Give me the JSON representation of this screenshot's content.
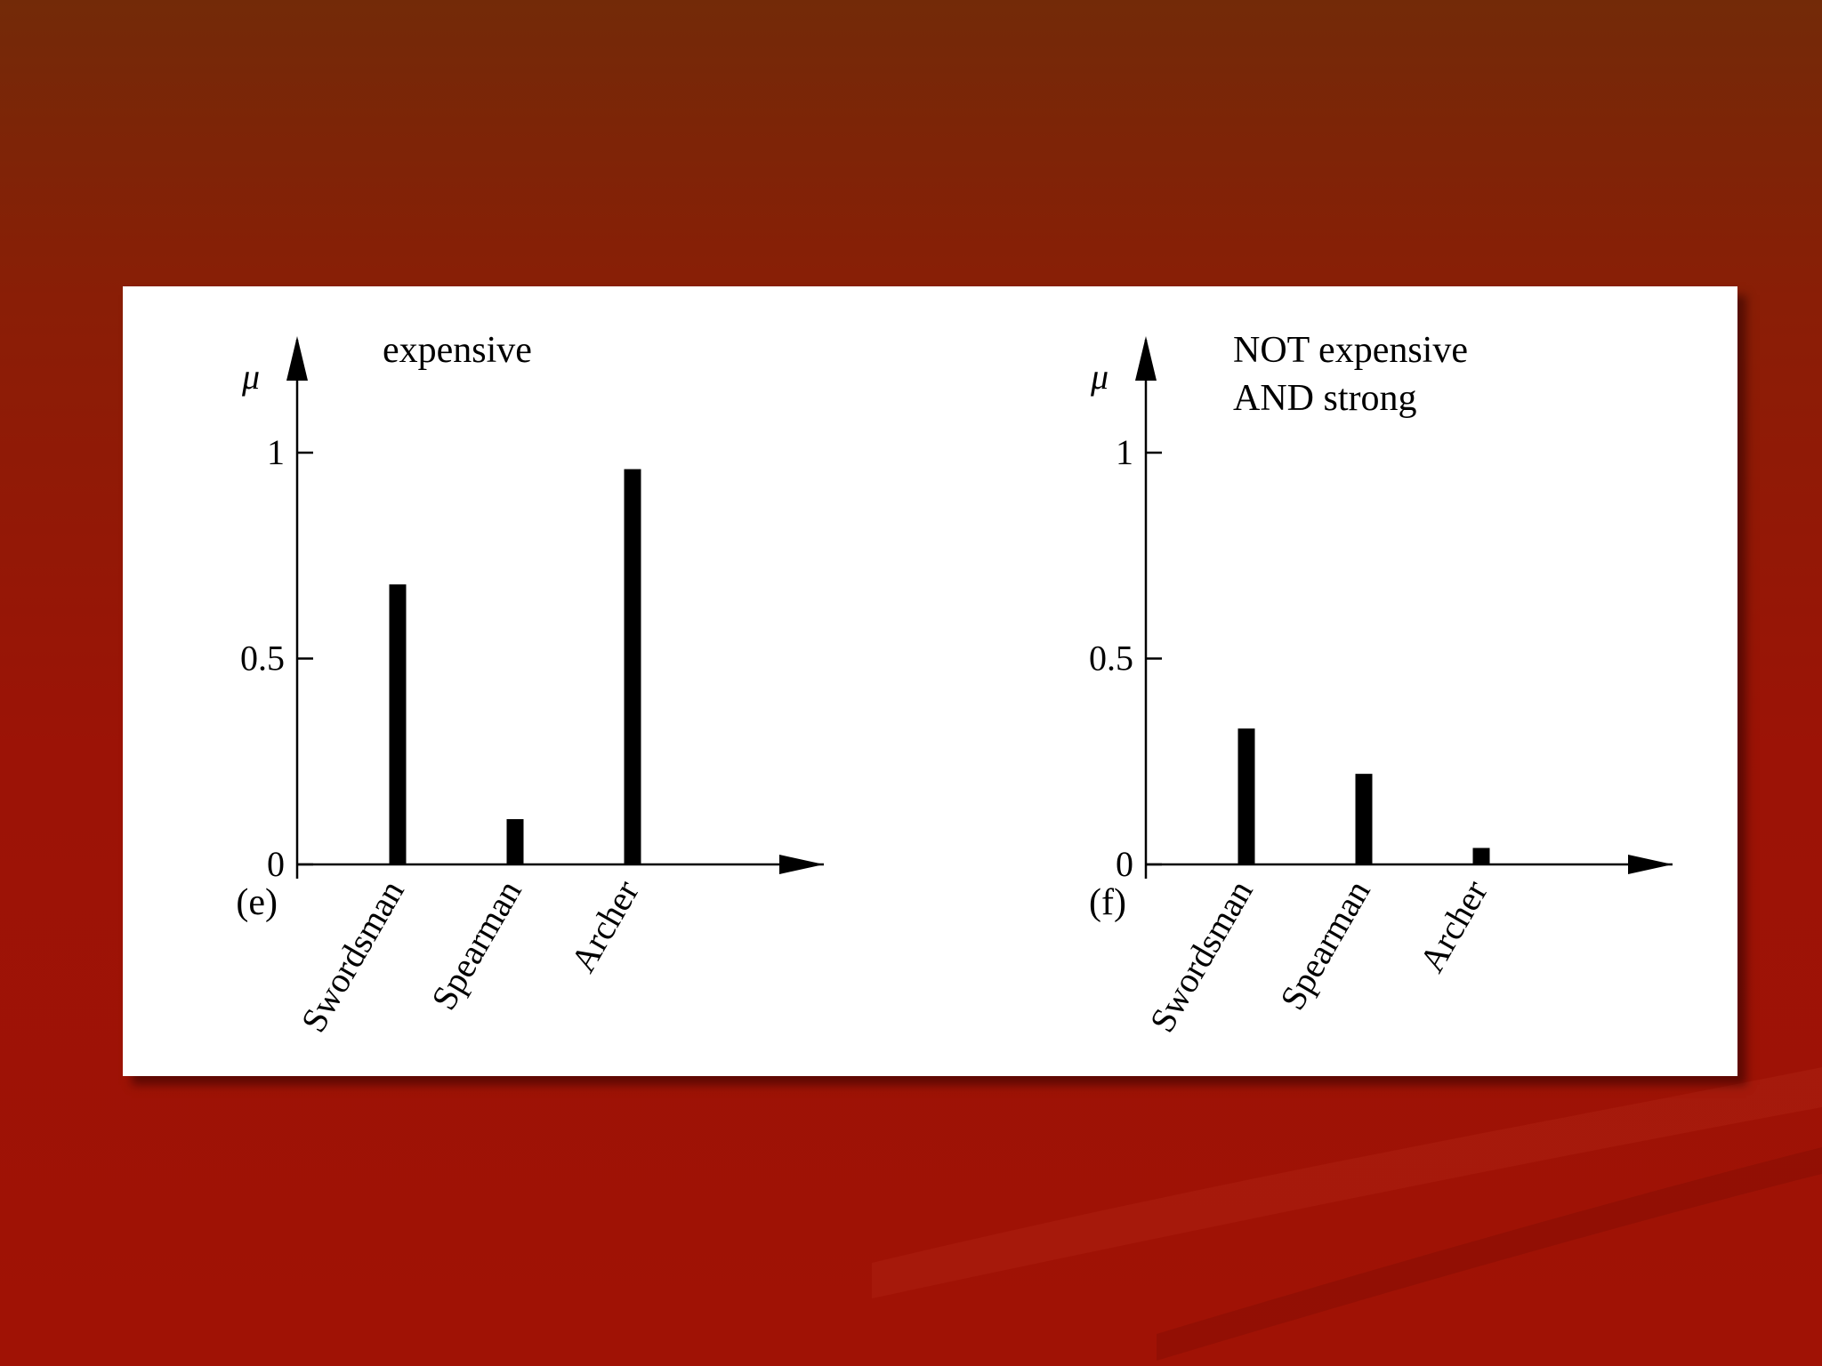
{
  "slide": {
    "background_colors": [
      "#732a08",
      "#a01205"
    ]
  },
  "chart_data": [
    {
      "type": "bar",
      "panel_label": "(e)",
      "title": "expensive",
      "title_lines": [
        "expensive"
      ],
      "ylabel": "μ",
      "xlabel": "",
      "categories": [
        "Swordsman",
        "Spearman",
        "Archer"
      ],
      "values": [
        0.68,
        0.11,
        0.96
      ],
      "ylim": [
        0,
        1.25
      ],
      "yticks": [
        0,
        0.5,
        1
      ],
      "ytick_labels": [
        "0",
        "0.5",
        "1"
      ],
      "grid": false,
      "bar_color": "#000000"
    },
    {
      "type": "bar",
      "panel_label": "(f)",
      "title": "NOT expensive AND strong",
      "title_lines": [
        "NOT expensive",
        "AND strong"
      ],
      "ylabel": "μ",
      "xlabel": "",
      "categories": [
        "Swordsman",
        "Spearman",
        "Archer"
      ],
      "values": [
        0.33,
        0.22,
        0.04
      ],
      "ylim": [
        0,
        1.25
      ],
      "yticks": [
        0,
        0.5,
        1
      ],
      "ytick_labels": [
        "0",
        "0.5",
        "1"
      ],
      "grid": false,
      "bar_color": "#000000"
    }
  ]
}
